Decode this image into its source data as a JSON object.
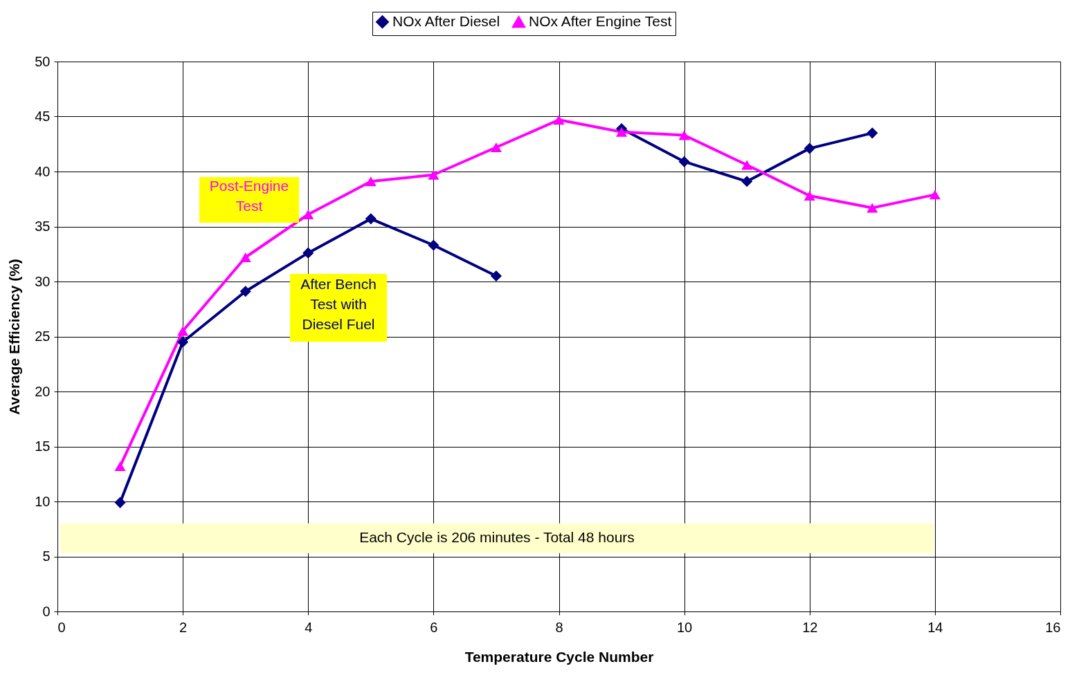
{
  "chart_data": {
    "type": "line",
    "xlabel": "Temperature Cycle Number",
    "ylabel": "Average Efficiency (%)",
    "x": [
      1,
      2,
      3,
      4,
      5,
      6,
      7,
      8,
      9,
      10,
      11,
      12,
      13,
      14
    ],
    "series": [
      {
        "name": "NOx After Diesel",
        "color": "#000080",
        "marker": "diamond",
        "values": [
          9.9,
          24.5,
          29.1,
          32.6,
          35.7,
          33.3,
          30.5,
          null,
          43.9,
          40.9,
          39.1,
          42.1,
          43.5,
          null
        ]
      },
      {
        "name": "NOx After Engine Test",
        "color": "#ff00ff",
        "marker": "triangle",
        "values": [
          13.2,
          25.5,
          32.2,
          36.1,
          39.1,
          39.7,
          42.2,
          44.7,
          43.6,
          43.3,
          40.6,
          37.8,
          36.7,
          37.9
        ]
      }
    ],
    "xlim": [
      0,
      16
    ],
    "xticks": [
      0,
      2,
      4,
      6,
      8,
      10,
      12,
      14,
      16
    ],
    "ylim": [
      0,
      50
    ],
    "yticks": [
      0,
      5,
      10,
      15,
      20,
      25,
      30,
      35,
      40,
      45,
      50
    ],
    "grid": true,
    "legend": "top",
    "bands": [
      {
        "axis": "y",
        "from": 5.3,
        "to": 8.0,
        "label": "Each Cycle is 206 minutes - Total 48 hours",
        "color": "#ffffcc"
      }
    ],
    "annotations": [
      "Post-Engine\nTest",
      "After Bench\nTest  with\nDiesel Fuel"
    ]
  }
}
